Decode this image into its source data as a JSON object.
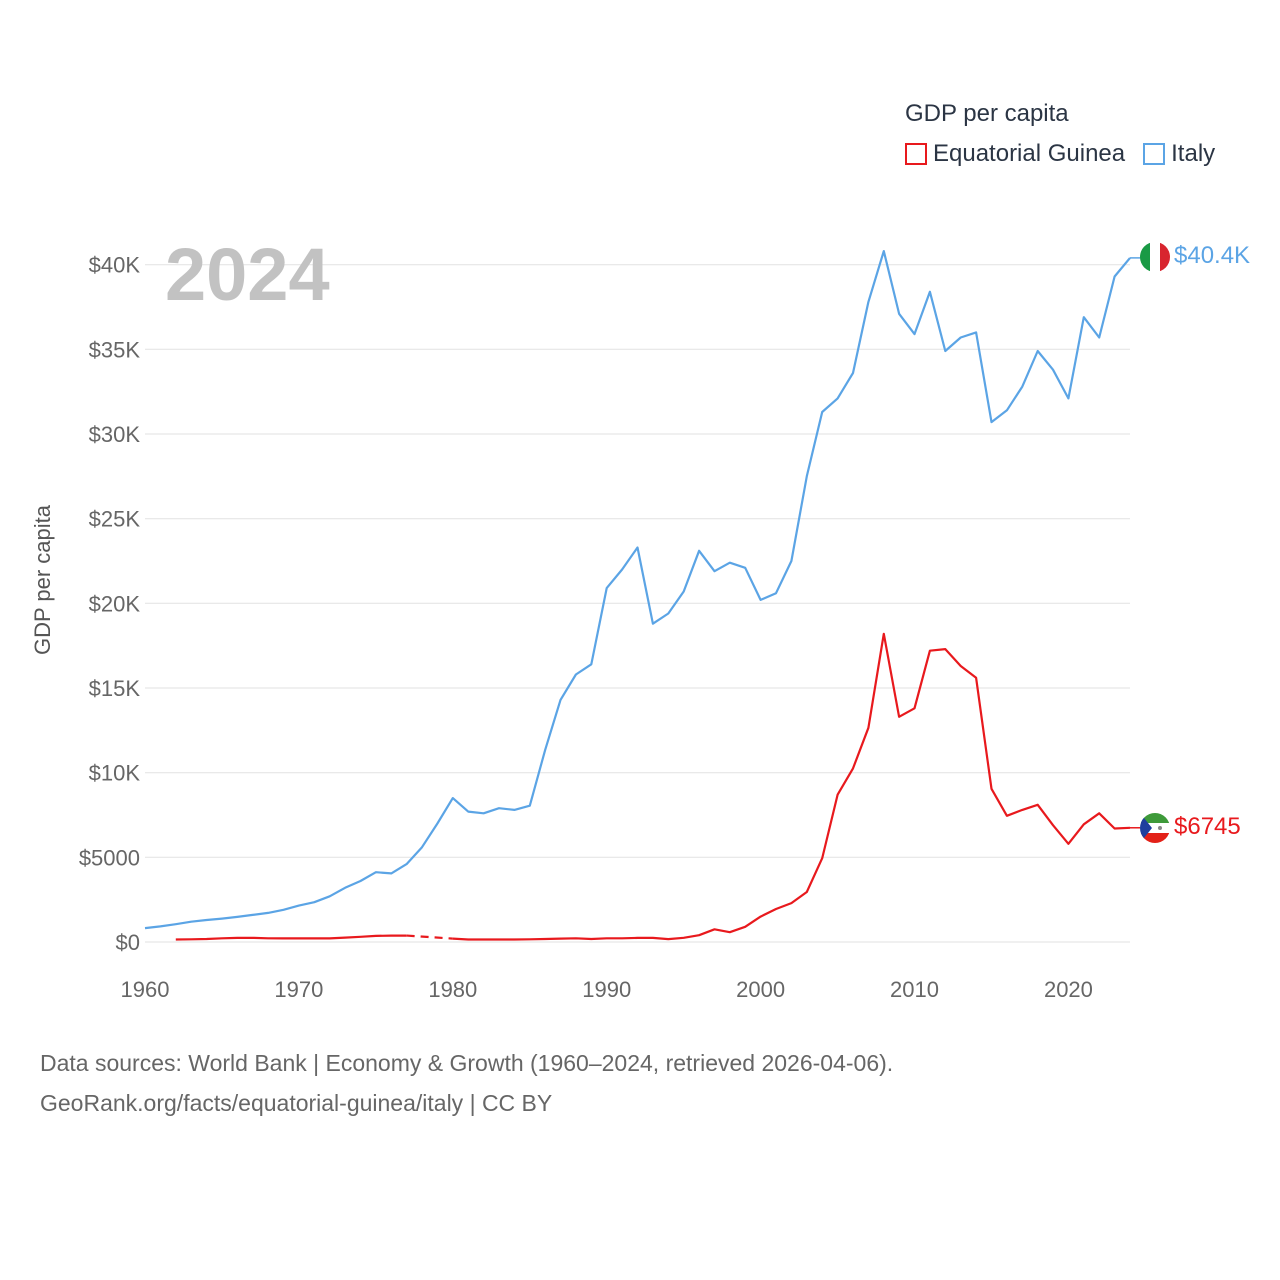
{
  "chart_data": {
    "type": "line",
    "title": "GDP per capita",
    "ylabel": "GDP per capita",
    "xlabel": "",
    "year_label": "2024",
    "xlim": [
      1960,
      2024
    ],
    "ylim": [
      0,
      42000
    ],
    "x_ticks": [
      {
        "value": 1960,
        "label": "1960"
      },
      {
        "value": 1970,
        "label": "1970"
      },
      {
        "value": 1980,
        "label": "1980"
      },
      {
        "value": 1990,
        "label": "1990"
      },
      {
        "value": 2000,
        "label": "2000"
      },
      {
        "value": 2010,
        "label": "2010"
      },
      {
        "value": 2020,
        "label": "2020"
      }
    ],
    "y_ticks": [
      {
        "value": 0,
        "label": "$0"
      },
      {
        "value": 5000,
        "label": "$5000"
      },
      {
        "value": 10000,
        "label": "$10K"
      },
      {
        "value": 15000,
        "label": "$15K"
      },
      {
        "value": 20000,
        "label": "$20K"
      },
      {
        "value": 25000,
        "label": "$25K"
      },
      {
        "value": 30000,
        "label": "$30K"
      },
      {
        "value": 35000,
        "label": "$35K"
      },
      {
        "value": 40000,
        "label": "$40K"
      }
    ],
    "grid": true,
    "legend_position": "top-right",
    "series": [
      {
        "name": "Equatorial Guinea",
        "color": "#e8191d",
        "end_label": "$6745",
        "flag": "equatorial-guinea-flag-icon",
        "gap_years": [
          1977,
          1980
        ],
        "x": [
          1962,
          1963,
          1964,
          1965,
          1966,
          1967,
          1968,
          1969,
          1970,
          1971,
          1972,
          1973,
          1974,
          1975,
          1976,
          1977,
          1980,
          1981,
          1982,
          1983,
          1984,
          1985,
          1986,
          1987,
          1988,
          1989,
          1990,
          1991,
          1992,
          1993,
          1994,
          1995,
          1996,
          1997,
          1998,
          1999,
          2000,
          2001,
          2002,
          2003,
          2004,
          2005,
          2006,
          2007,
          2008,
          2009,
          2010,
          2011,
          2012,
          2013,
          2014,
          2015,
          2016,
          2017,
          2018,
          2019,
          2020,
          2021,
          2022,
          2023,
          2024
        ],
        "y": [
          150,
          160,
          180,
          220,
          240,
          250,
          220,
          210,
          210,
          210,
          210,
          260,
          310,
          360,
          380,
          380,
          200,
          150,
          150,
          150,
          150,
          160,
          180,
          200,
          220,
          180,
          220,
          220,
          240,
          240,
          170,
          250,
          400,
          750,
          580,
          900,
          1500,
          1950,
          2300,
          2950,
          4950,
          8700,
          10250,
          12650,
          18200,
          13300,
          13800,
          17200,
          17300,
          16300,
          15600,
          9050,
          7450,
          7800,
          8100,
          6900,
          5800,
          6950,
          7600,
          6700,
          6745
        ]
      },
      {
        "name": "Italy",
        "color": "#5ba4e5",
        "end_label": "$40.4K",
        "flag": "italy-flag-icon",
        "x": [
          1960,
          1961,
          1962,
          1963,
          1964,
          1965,
          1966,
          1967,
          1968,
          1969,
          1970,
          1971,
          1972,
          1973,
          1974,
          1975,
          1976,
          1977,
          1978,
          1979,
          1980,
          1981,
          1982,
          1983,
          1984,
          1985,
          1986,
          1987,
          1988,
          1989,
          1990,
          1991,
          1992,
          1993,
          1994,
          1995,
          1996,
          1997,
          1998,
          1999,
          2000,
          2001,
          2002,
          2003,
          2004,
          2005,
          2006,
          2007,
          2008,
          2009,
          2010,
          2011,
          2012,
          2013,
          2014,
          2015,
          2016,
          2017,
          2018,
          2019,
          2020,
          2021,
          2022,
          2023,
          2024
        ],
        "y": [
          820,
          920,
          1050,
          1200,
          1300,
          1380,
          1480,
          1600,
          1720,
          1900,
          2150,
          2350,
          2700,
          3200,
          3600,
          4120,
          4050,
          4600,
          5600,
          7000,
          8500,
          7700,
          7600,
          7900,
          7800,
          8050,
          11350,
          14300,
          15800,
          16400,
          20900,
          22000,
          23300,
          18800,
          19400,
          20700,
          23100,
          21900,
          22400,
          22100,
          20200,
          20600,
          22500,
          27500,
          31300,
          32100,
          33600,
          37800,
          40800,
          37100,
          35900,
          38400,
          34900,
          35700,
          36000,
          30700,
          31400,
          32800,
          34900,
          33800,
          32100,
          36900,
          35700,
          39300,
          40400
        ]
      }
    ]
  },
  "legend": {
    "title": "GDP per capita",
    "items": [
      "Equatorial Guinea",
      "Italy"
    ]
  },
  "footer": {
    "line1": "Data sources: World Bank | Economy & Growth (1960–2024, retrieved 2026-04-06).",
    "line2": "GeoRank.org/facts/equatorial-guinea/italy | CC BY"
  }
}
